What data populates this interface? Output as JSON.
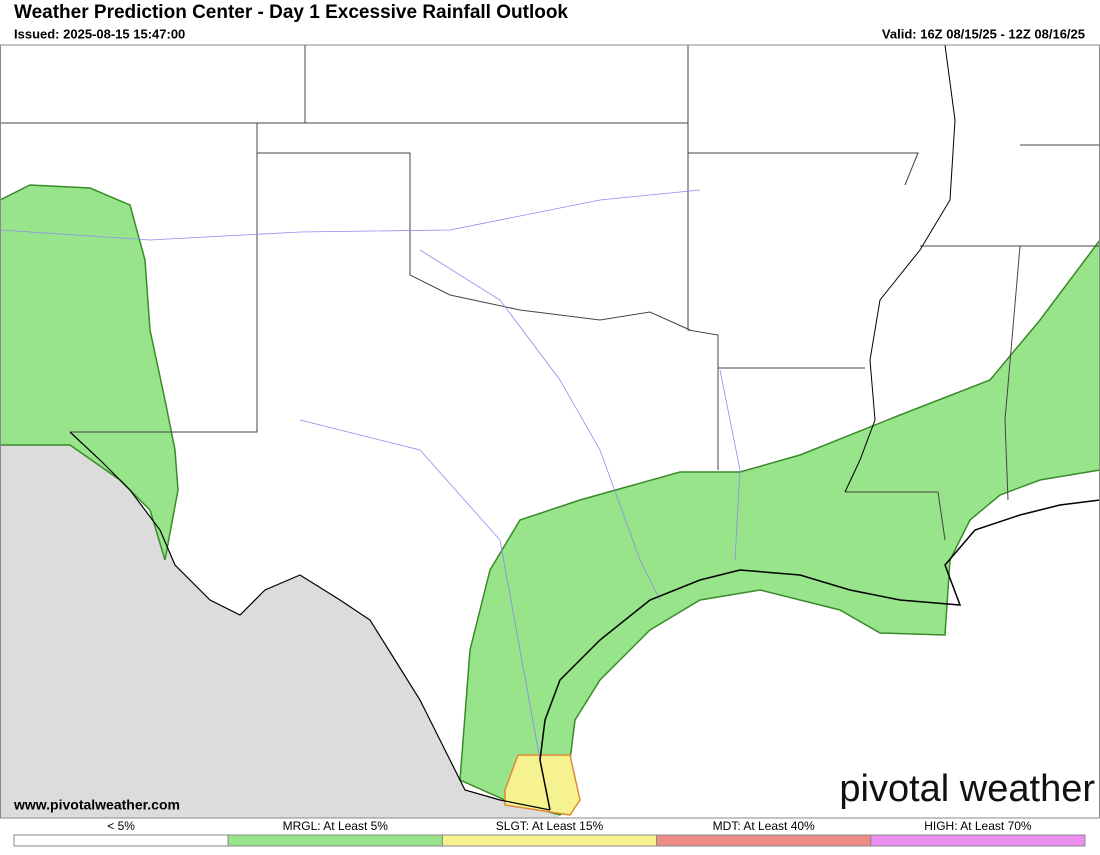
{
  "header": {
    "title": "Weather Prediction Center - Day 1 Excessive Rainfall Outlook",
    "issued": "Issued: 2025-08-15 15:47:00",
    "valid": "Valid: 16Z 08/15/25 - 12Z 08/16/25"
  },
  "watermark": {
    "url": "www.pivotalweather.com",
    "brand": "pivotal weather"
  },
  "legend": [
    {
      "label": "< 5%",
      "color": "#ffffff"
    },
    {
      "label": "MRGL: At Least 5%",
      "color": "#97e48a"
    },
    {
      "label": "SLGT: At Least 15%",
      "color": "#f6f28f"
    },
    {
      "label": "MDT: At Least 40%",
      "color": "#ec8c85"
    },
    {
      "label": "HIGH: At Least 70%",
      "color": "#ec8ef0"
    }
  ]
}
